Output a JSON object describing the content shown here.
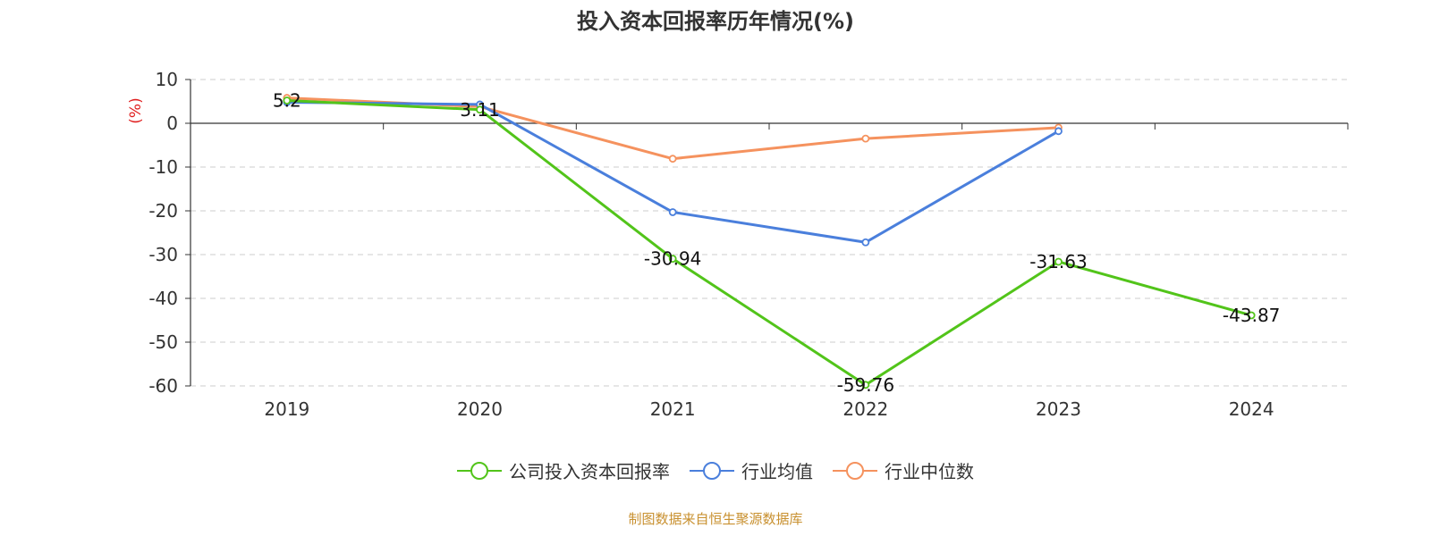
{
  "chart_data": {
    "type": "line",
    "title": "投入资本回报率历年情况(%)",
    "ylabel": "(%)",
    "xlabel": "",
    "categories": [
      "2019",
      "2020",
      "2021",
      "2022",
      "2023",
      "2024"
    ],
    "ylim": [
      -60,
      10
    ],
    "yticks": [
      "10",
      "0",
      "-10",
      "-20",
      "-30",
      "-40",
      "-50",
      "-60"
    ],
    "grid": true,
    "legend_position": "bottom",
    "series": [
      {
        "name": "公司投入资本回报率",
        "color": "#52c41a",
        "values": [
          5.2,
          3.11,
          -30.94,
          -59.76,
          -31.63,
          -43.87
        ],
        "labels": [
          "5.2",
          "3.11",
          "-30.94",
          "-59.76",
          "-31.63",
          "-43.87"
        ]
      },
      {
        "name": "行业均值",
        "color": "#4a7fdc",
        "values": [
          4.8,
          4.3,
          -20.3,
          -27.2,
          -1.8,
          null
        ]
      },
      {
        "name": "行业中位数",
        "color": "#f5925e",
        "values": [
          5.8,
          3.8,
          -8.1,
          -3.5,
          -1.0,
          null
        ]
      }
    ]
  },
  "source_note": "制图数据来自恒生聚源数据库",
  "colors": {
    "source_note": "#c8902f",
    "ylabel": "#e02020",
    "axis": "#333333",
    "grid": "#cccccc"
  }
}
